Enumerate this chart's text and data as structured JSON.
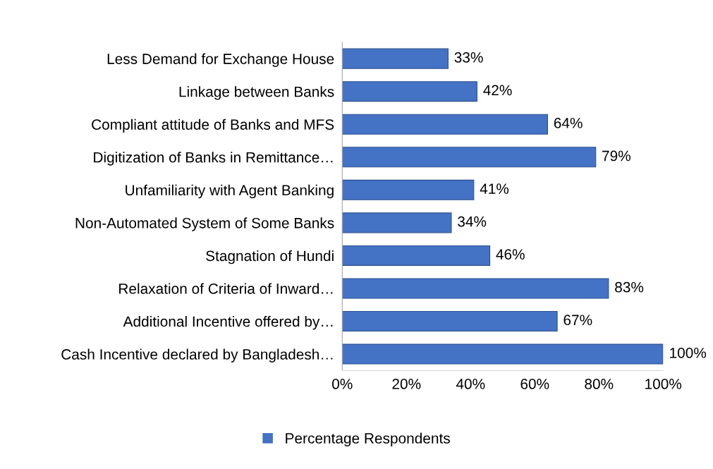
{
  "chart_data": {
    "type": "bar",
    "orientation": "horizontal",
    "categories": [
      "Less Demand for Exchange House",
      "Linkage between Banks",
      "Compliant attitude of Banks and MFS",
      "Digitization of Banks in Remittance…",
      "Unfamiliarity with Agent Banking",
      "Non-Automated System of Some Banks",
      "Stagnation of Hundi",
      "Relaxation of Criteria of Inward…",
      "Additional Incentive offered by…",
      "Cash Incentive declared by Bangladesh…"
    ],
    "series": [
      {
        "name": "Percentage Respondents",
        "color": "#4472c4",
        "values": [
          33,
          42,
          64,
          79,
          41,
          34,
          46,
          83,
          67,
          100
        ],
        "value_labels": [
          "33%",
          "42%",
          "64%",
          "79%",
          "41%",
          "34%",
          "46%",
          "83%",
          "67%",
          "100%"
        ]
      }
    ],
    "xlim": [
      0,
      100
    ],
    "xticks": [
      {
        "value": 0,
        "label": "0%"
      },
      {
        "value": 20,
        "label": "20%"
      },
      {
        "value": 40,
        "label": "40%"
      },
      {
        "value": 60,
        "label": "60%"
      },
      {
        "value": 80,
        "label": "80%"
      },
      {
        "value": 100,
        "label": "100%"
      }
    ],
    "legend": "bottom",
    "grid": false
  }
}
